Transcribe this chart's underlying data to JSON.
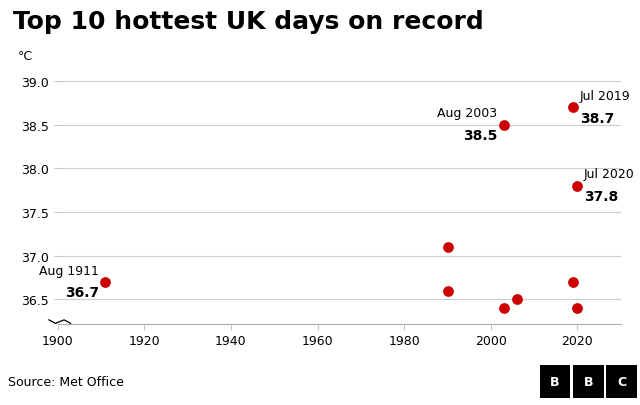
{
  "title": "Top 10 hottest UK days on record",
  "ylabel": "°C",
  "source": "Source: Met Office",
  "points": [
    {
      "year": 1911,
      "temp": 36.7,
      "label": "Aug 1911",
      "value_label": "36.7",
      "annotate": true,
      "label_side": "above_left"
    },
    {
      "year": 1990,
      "temp": 37.1,
      "annotate": false
    },
    {
      "year": 1990,
      "temp": 36.6,
      "annotate": false
    },
    {
      "year": 2003,
      "temp": 38.5,
      "label": "Aug 2003",
      "value_label": "38.5",
      "annotate": true,
      "label_side": "above_left"
    },
    {
      "year": 2003,
      "temp": 36.4,
      "annotate": false
    },
    {
      "year": 2006,
      "temp": 36.5,
      "annotate": false
    },
    {
      "year": 2019,
      "temp": 38.7,
      "label": "Jul 2019",
      "value_label": "38.7",
      "annotate": true,
      "label_side": "above_right"
    },
    {
      "year": 2019,
      "temp": 36.7,
      "annotate": false
    },
    {
      "year": 2020,
      "temp": 37.8,
      "label": "Jul 2020",
      "value_label": "37.8",
      "annotate": true,
      "label_side": "above_right"
    },
    {
      "year": 2020,
      "temp": 36.4,
      "annotate": false
    }
  ],
  "dot_color": "#cc0000",
  "dot_size": 60,
  "xlim": [
    1900,
    2030
  ],
  "ylim": [
    36.22,
    39.1
  ],
  "yticks": [
    36.5,
    37.0,
    37.5,
    38.0,
    38.5,
    39.0
  ],
  "xticks": [
    1900,
    1920,
    1940,
    1960,
    1980,
    2000,
    2020
  ],
  "bg_color": "#ffffff",
  "footer_bg": "#e2e2e2",
  "title_fontsize": 18,
  "annot_label_fontsize": 9,
  "annot_value_fontsize": 10,
  "axis_fontsize": 9,
  "ylabel_fontsize": 9
}
